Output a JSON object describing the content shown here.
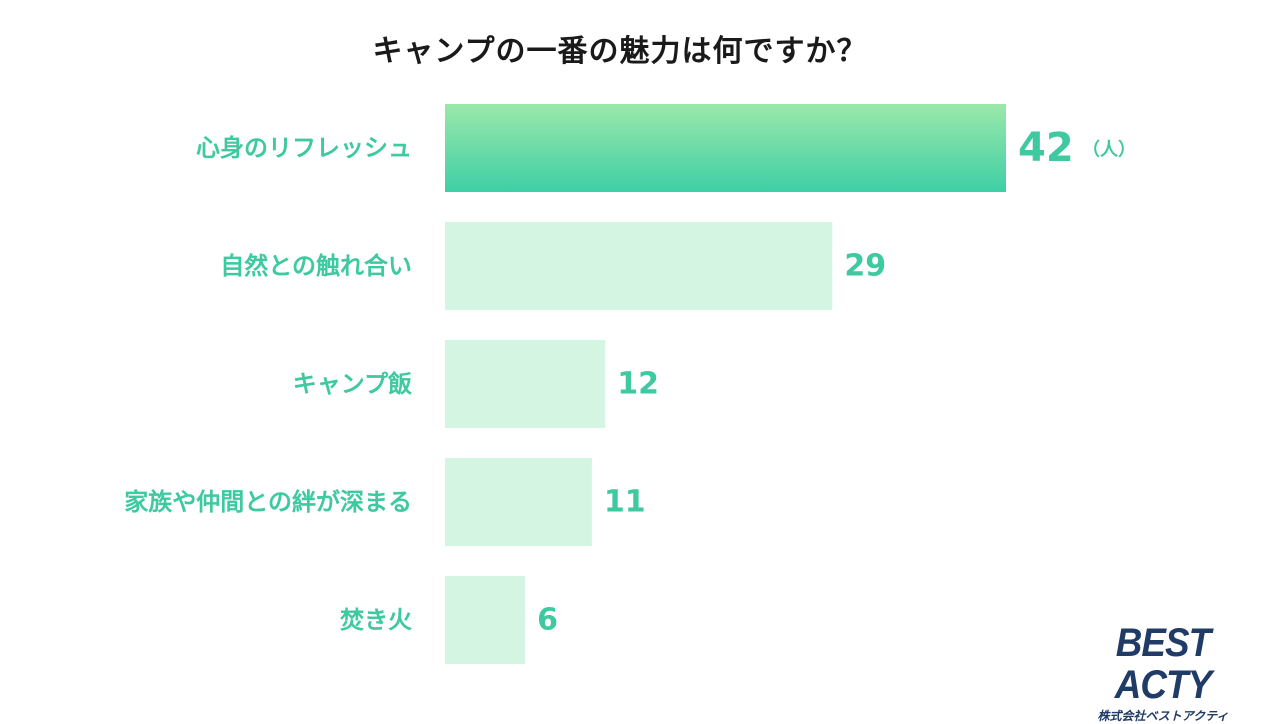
{
  "chart_data": {
    "type": "bar",
    "orientation": "horizontal",
    "title": "キャンプの一番の魅力は何ですか？",
    "unit": "（人）",
    "categories": [
      "心身のリフレッシュ",
      "自然との触れ合い",
      "キャンプ飯",
      "家族や仲間との絆が深まる",
      "焚き火"
    ],
    "values": [
      42,
      29,
      12,
      11,
      6
    ],
    "xlim": [
      0,
      42
    ],
    "grid": false,
    "colors": {
      "highlight_top": "#9be8a8",
      "highlight_bottom": "#3ecfa6",
      "bar": "#d5f5e3",
      "label": "#3ec9a0"
    }
  },
  "logo": {
    "main": "BEST ACTY",
    "sub": "株式会社ベストアクティ"
  }
}
